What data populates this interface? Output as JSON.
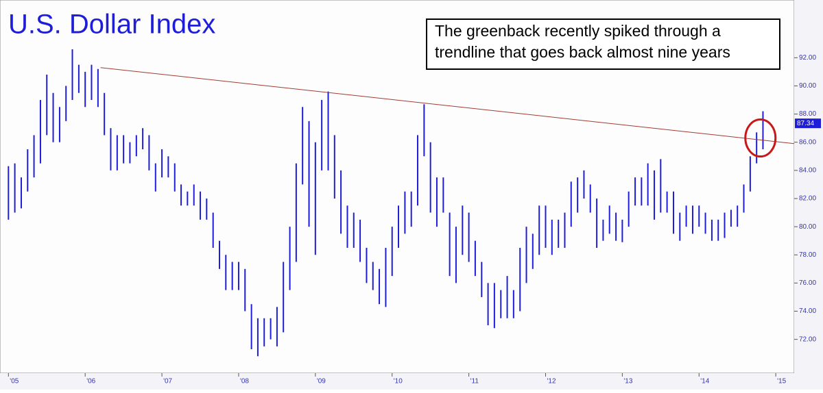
{
  "chart_data": {
    "type": "range-bar",
    "title": "U.S. Dollar Index",
    "annotation": [
      "The greenback recently spiked through a",
      "trendline that goes back almost nine years"
    ],
    "color": "#1e1ed8",
    "x": [
      2005.0,
      2005.083,
      2005.167,
      2005.25,
      2005.333,
      2005.417,
      2005.5,
      2005.583,
      2005.667,
      2005.75,
      2005.833,
      2005.917,
      2006.0,
      2006.083,
      2006.167,
      2006.25,
      2006.333,
      2006.417,
      2006.5,
      2006.583,
      2006.667,
      2006.75,
      2006.833,
      2006.917,
      2007.0,
      2007.083,
      2007.167,
      2007.25,
      2007.333,
      2007.417,
      2007.5,
      2007.583,
      2007.667,
      2007.75,
      2007.833,
      2007.917,
      2008.0,
      2008.083,
      2008.167,
      2008.25,
      2008.333,
      2008.417,
      2008.5,
      2008.583,
      2008.667,
      2008.75,
      2008.833,
      2008.917,
      2009.0,
      2009.083,
      2009.167,
      2009.25,
      2009.333,
      2009.417,
      2009.5,
      2009.583,
      2009.667,
      2009.75,
      2009.833,
      2009.917,
      2010.0,
      2010.083,
      2010.167,
      2010.25,
      2010.333,
      2010.417,
      2010.5,
      2010.583,
      2010.667,
      2010.75,
      2010.833,
      2010.917,
      2011.0,
      2011.083,
      2011.167,
      2011.25,
      2011.333,
      2011.417,
      2011.5,
      2011.583,
      2011.667,
      2011.75,
      2011.833,
      2011.917,
      2012.0,
      2012.083,
      2012.167,
      2012.25,
      2012.333,
      2012.417,
      2012.5,
      2012.583,
      2012.667,
      2012.75,
      2012.833,
      2012.917,
      2013.0,
      2013.083,
      2013.167,
      2013.25,
      2013.333,
      2013.417,
      2013.5,
      2013.583,
      2013.667,
      2013.75,
      2013.833,
      2013.917,
      2014.0,
      2014.083,
      2014.167,
      2014.25,
      2014.333,
      2014.417,
      2014.5,
      2014.583,
      2014.667,
      2014.75,
      2014.833
    ],
    "high": [
      84.3,
      84.5,
      83.5,
      85.5,
      86.5,
      89,
      90.8,
      89.5,
      88.5,
      90,
      92.6,
      91.5,
      91,
      91.5,
      91.2,
      89.5,
      87,
      86.5,
      86.5,
      86,
      86.5,
      87,
      86.5,
      84.5,
      85.5,
      85,
      84.5,
      83,
      82.5,
      83,
      82.5,
      82,
      81,
      79,
      78,
      77.5,
      77.5,
      77,
      74.5,
      73.5,
      73.5,
      73.5,
      74.3,
      77.5,
      80,
      84.5,
      88.5,
      87.5,
      86,
      89,
      89.6,
      86.5,
      84,
      81.5,
      81,
      80.5,
      78.5,
      77.5,
      77,
      78.5,
      80,
      81.5,
      82.5,
      82.5,
      86.5,
      88.7,
      86,
      83.5,
      83.5,
      81,
      80,
      81.5,
      81,
      79,
      77.5,
      76,
      76,
      75.5,
      76.5,
      75.5,
      78.5,
      80,
      79.5,
      81.5,
      81.5,
      80.5,
      80.5,
      81,
      83.2,
      83.5,
      84,
      83,
      82,
      80.5,
      81.5,
      81,
      80.5,
      82.5,
      83.5,
      83.5,
      84.5,
      84,
      84.8,
      82.5,
      82.5,
      81,
      81.5,
      81.5,
      81.5,
      81,
      80.5,
      80.5,
      81,
      81.2,
      81.5,
      83,
      85,
      86.7,
      88.2
    ],
    "low": [
      80.5,
      81,
      81.3,
      82.5,
      83.5,
      84.5,
      86.5,
      86,
      86,
      87.5,
      89,
      89.5,
      88.5,
      89,
      88.5,
      86.5,
      84,
      84,
      84.5,
      84.5,
      85,
      85.5,
      84,
      82.5,
      83.5,
      83.5,
      82.5,
      81.5,
      81.5,
      81.5,
      80.5,
      80.5,
      78.5,
      77,
      75.5,
      75.5,
      75.5,
      74,
      71.3,
      70.8,
      71.5,
      72,
      71.5,
      72.5,
      75.5,
      77.5,
      83,
      80,
      78,
      84,
      84,
      82,
      79.5,
      78.5,
      78.5,
      77.5,
      76,
      75.5,
      74.5,
      74.3,
      76.5,
      78.5,
      79.5,
      80,
      81.5,
      85,
      81,
      80,
      81,
      76.5,
      76,
      78,
      77.5,
      76.5,
      75,
      73,
      72.8,
      73.5,
      73.5,
      73.5,
      74,
      76,
      77,
      78,
      78.5,
      78,
      78.5,
      78.5,
      80,
      81,
      82,
      81,
      78.5,
      79,
      79.5,
      79,
      78.9,
      80,
      81.5,
      81.5,
      81.5,
      80.5,
      81,
      81,
      79.5,
      79,
      80,
      79.5,
      80,
      79.5,
      79,
      79,
      79.2,
      80,
      80,
      81,
      82.5,
      84.5,
      85.5
    ],
    "last_value": 87.34,
    "trendline": {
      "x": [
        2006.2,
        2015.24
      ],
      "y": [
        91.3,
        85.9
      ],
      "color": "#a03a30"
    },
    "highlight": {
      "x": 2014.8,
      "y": 86.3,
      "color": "#c81818"
    },
    "xlim": [
      2004.89,
      2015.24
    ],
    "ylim": [
      69.6,
      96.1
    ],
    "xticks": [
      {
        "value": 2005,
        "label": "'05"
      },
      {
        "value": 2006,
        "label": "'06"
      },
      {
        "value": 2007,
        "label": "'07"
      },
      {
        "value": 2008,
        "label": "'08"
      },
      {
        "value": 2009,
        "label": "'09"
      },
      {
        "value": 2010,
        "label": "'10"
      },
      {
        "value": 2011,
        "label": "'11"
      },
      {
        "value": 2012,
        "label": "'12"
      },
      {
        "value": 2013,
        "label": "'13"
      },
      {
        "value": 2014,
        "label": "'14"
      },
      {
        "value": 2015,
        "label": "'15"
      }
    ],
    "yticks": [
      {
        "value": 72,
        "label": "72.00"
      },
      {
        "value": 74,
        "label": "74.00"
      },
      {
        "value": 76,
        "label": "76.00"
      },
      {
        "value": 78,
        "label": "78.00"
      },
      {
        "value": 80,
        "label": "80.00"
      },
      {
        "value": 82,
        "label": "82.00"
      },
      {
        "value": 84,
        "label": "84.00"
      },
      {
        "value": 86,
        "label": "86.00"
      },
      {
        "value": 88,
        "label": "88.00"
      },
      {
        "value": 90,
        "label": "90.00"
      },
      {
        "value": 92,
        "label": "92.00"
      }
    ]
  }
}
